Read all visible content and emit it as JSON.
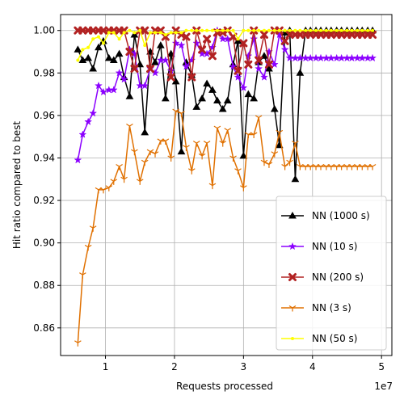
{
  "chart_data": {
    "type": "line",
    "xlabel": "Requests processed",
    "ylabel": "Hit ratio compared to best",
    "x_offset_label": "1e7",
    "xlim": [
      3500000,
      51500000
    ],
    "ylim": [
      0.847,
      1.0075
    ],
    "xticks": [
      10000000,
      20000000,
      30000000,
      40000000,
      50000000
    ],
    "xtick_labels": [
      "1",
      "2",
      "3",
      "4",
      "5"
    ],
    "yticks": [
      0.86,
      0.88,
      0.9,
      0.92,
      0.94,
      0.96,
      0.98,
      1.0
    ],
    "ytick_labels": [
      "0.86",
      "0.88",
      "0.90",
      "0.92",
      "0.94",
      "0.96",
      "0.98",
      "1.00"
    ],
    "grid": true,
    "legend_position": "lower-right",
    "x": [
      6000000,
      6700000,
      7500000,
      8200000,
      9000000,
      9700000,
      10500000,
      11200000,
      12000000,
      12700000,
      13500000,
      14200000,
      15000000,
      15700000,
      16500000,
      17200000,
      18000000,
      18700000,
      19500000,
      20200000,
      21000000,
      21700000,
      22500000,
      23200000,
      24000000,
      24700000,
      25500000,
      26200000,
      27000000,
      27700000,
      28500000,
      29200000,
      30000000,
      30700000,
      31500000,
      32200000,
      33000000,
      33700000,
      34500000,
      35200000,
      36000000,
      36700000,
      37500000,
      38200000,
      39000000,
      39700000,
      40500000,
      41200000,
      42000000,
      42700000,
      43500000,
      44200000,
      45000000,
      45700000,
      46500000,
      47200000,
      48000000,
      48700000
    ],
    "series": [
      {
        "name": "NN (1000 s)",
        "color": "#000000",
        "marker": "triangle",
        "values": [
          0.991,
          0.986,
          0.987,
          0.982,
          0.992,
          0.995,
          0.987,
          0.986,
          0.989,
          0.978,
          0.969,
          0.998,
          0.984,
          0.952,
          0.99,
          0.985,
          0.993,
          0.968,
          0.989,
          0.976,
          0.943,
          0.985,
          0.979,
          0.964,
          0.968,
          0.975,
          0.972,
          0.967,
          0.963,
          0.967,
          0.984,
          0.995,
          0.941,
          0.97,
          0.968,
          0.985,
          0.988,
          0.982,
          0.963,
          0.946,
          0.999,
          1.0,
          0.93,
          0.98,
          1.0,
          1.0,
          1.0,
          1.0,
          1.0,
          1.0,
          1.0,
          1.0,
          1.0,
          1.0,
          1.0,
          1.0,
          1.0,
          1.0
        ]
      },
      {
        "name": "NN (10 s)",
        "color": "#8b00ff",
        "marker": "star",
        "values": [
          0.939,
          0.951,
          0.957,
          0.961,
          0.974,
          0.971,
          0.972,
          0.972,
          0.98,
          0.977,
          0.991,
          0.989,
          0.974,
          0.974,
          0.982,
          0.98,
          0.986,
          0.986,
          0.981,
          0.994,
          0.993,
          0.983,
          0.986,
          0.994,
          0.989,
          0.989,
          0.992,
          1.0,
          0.996,
          0.996,
          0.983,
          0.978,
          0.973,
          0.988,
          0.996,
          0.982,
          0.978,
          0.99,
          0.984,
          0.998,
          0.991,
          0.987,
          0.987,
          0.987,
          0.987,
          0.987,
          0.987,
          0.987,
          0.987,
          0.987,
          0.987,
          0.987,
          0.987,
          0.987,
          0.987,
          0.987,
          0.987,
          0.987
        ]
      },
      {
        "name": "NN (200 s)",
        "color": "#b22222",
        "marker": "x",
        "values": [
          1.0,
          1.0,
          1.0,
          1.0,
          1.0,
          1.0,
          1.0,
          1.0,
          1.0,
          1.0,
          0.99,
          0.982,
          1.0,
          1.0,
          0.982,
          1.0,
          1.0,
          0.997,
          0.978,
          1.0,
          0.998,
          0.997,
          0.978,
          1.0,
          0.991,
          0.996,
          0.988,
          0.999,
          0.999,
          1.0,
          0.997,
          0.981,
          0.994,
          0.984,
          1.0,
          0.986,
          0.998,
          0.984,
          1.0,
          1.0,
          0.995,
          0.998,
          0.998,
          0.998,
          0.998,
          0.998,
          0.998,
          0.998,
          0.998,
          0.998,
          0.998,
          0.998,
          0.998,
          0.998,
          0.998,
          0.998,
          0.998,
          0.998
        ]
      },
      {
        "name": "NN (3 s)",
        "color": "#e07000",
        "marker": "tri_down",
        "values": [
          0.853,
          0.885,
          0.898,
          0.907,
          0.925,
          0.925,
          0.926,
          0.929,
          0.936,
          0.93,
          0.955,
          0.943,
          0.929,
          0.938,
          0.943,
          0.942,
          0.948,
          0.948,
          0.94,
          0.962,
          0.961,
          0.945,
          0.934,
          0.947,
          0.941,
          0.947,
          0.927,
          0.954,
          0.947,
          0.953,
          0.94,
          0.934,
          0.926,
          0.951,
          0.951,
          0.959,
          0.938,
          0.937,
          0.942,
          0.952,
          0.936,
          0.938,
          0.947,
          0.936,
          0.936,
          0.936,
          0.936,
          0.936,
          0.936,
          0.936,
          0.936,
          0.936,
          0.936,
          0.936,
          0.936,
          0.936,
          0.936,
          0.936
        ]
      },
      {
        "name": "NN (50 s)",
        "color": "#ffff00",
        "marker": "dot",
        "values": [
          0.986,
          0.991,
          0.992,
          0.996,
          0.997,
          0.994,
          0.999,
          0.999,
          0.996,
          0.999,
          1.0,
          0.999,
          1.0,
          0.993,
          0.999,
          0.999,
          0.999,
          0.998,
          0.999,
          0.999,
          0.999,
          1.0,
          1.0,
          1.0,
          1.0,
          1.0,
          1.0,
          1.0,
          1.0,
          1.0,
          1.0,
          0.996,
          1.0,
          1.0,
          1.0,
          1.0,
          1.0,
          1.0,
          1.0,
          1.0,
          1.0,
          1.0,
          1.0,
          1.0,
          1.0,
          1.0,
          1.0,
          1.0,
          1.0,
          1.0,
          1.0,
          1.0,
          1.0,
          1.0,
          1.0,
          1.0,
          1.0,
          1.0
        ]
      }
    ]
  }
}
